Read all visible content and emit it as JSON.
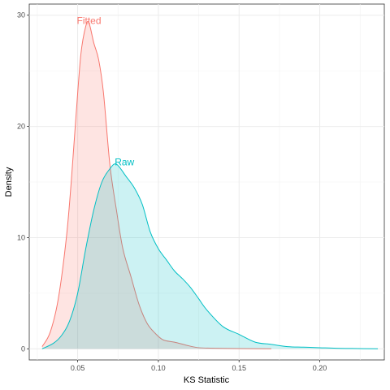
{
  "chart_data": {
    "type": "area",
    "title": "",
    "xlabel": "KS Statistic",
    "ylabel": "Density",
    "xlim": [
      0.02,
      0.24
    ],
    "ylim": [
      -1.0,
      31.0
    ],
    "x_ticks": [
      0.05,
      0.1,
      0.15,
      0.2
    ],
    "x_tick_labels": [
      "0.05",
      "0.10",
      "0.15",
      "0.20"
    ],
    "y_ticks": [
      0,
      10,
      20,
      30
    ],
    "y_tick_labels": [
      "0",
      "10",
      "20",
      "30"
    ],
    "grid": true,
    "legend": "none",
    "colors": {
      "Fitted": "#F8766D",
      "Raw": "#00BFC4"
    },
    "series": [
      {
        "name": "Fitted",
        "label_position": [
          0.057,
          29.5
        ],
        "x": [
          0.028,
          0.033,
          0.038,
          0.043,
          0.046,
          0.049,
          0.052,
          0.055,
          0.057,
          0.06,
          0.063,
          0.066,
          0.07,
          0.074,
          0.078,
          0.083,
          0.088,
          0.093,
          0.098,
          0.103,
          0.11,
          0.118,
          0.125,
          0.135,
          0.15,
          0.17
        ],
        "y": [
          0.2,
          1.5,
          4.5,
          10.0,
          15.0,
          21.0,
          26.5,
          29.0,
          29.3,
          27.5,
          26.0,
          23.0,
          16.5,
          12.5,
          9.0,
          6.5,
          4.0,
          2.3,
          1.4,
          0.8,
          0.6,
          0.3,
          0.1,
          0.05,
          0.02,
          0.0
        ]
      },
      {
        "name": "Raw",
        "label_position": [
          0.079,
          16.8
        ],
        "x": [
          0.028,
          0.035,
          0.04,
          0.045,
          0.05,
          0.055,
          0.06,
          0.065,
          0.07,
          0.074,
          0.08,
          0.085,
          0.09,
          0.095,
          0.1,
          0.105,
          0.11,
          0.115,
          0.12,
          0.125,
          0.13,
          0.14,
          0.15,
          0.16,
          0.17,
          0.18,
          0.19,
          0.2,
          0.21,
          0.22,
          0.236
        ],
        "y": [
          0.0,
          0.5,
          1.2,
          2.5,
          5.0,
          9.0,
          12.5,
          15.0,
          16.2,
          16.6,
          15.5,
          14.5,
          13.0,
          10.5,
          9.0,
          8.0,
          7.0,
          6.3,
          5.5,
          4.5,
          3.5,
          2.0,
          1.3,
          0.6,
          0.4,
          0.2,
          0.15,
          0.1,
          0.05,
          0.03,
          0.0
        ]
      }
    ]
  }
}
